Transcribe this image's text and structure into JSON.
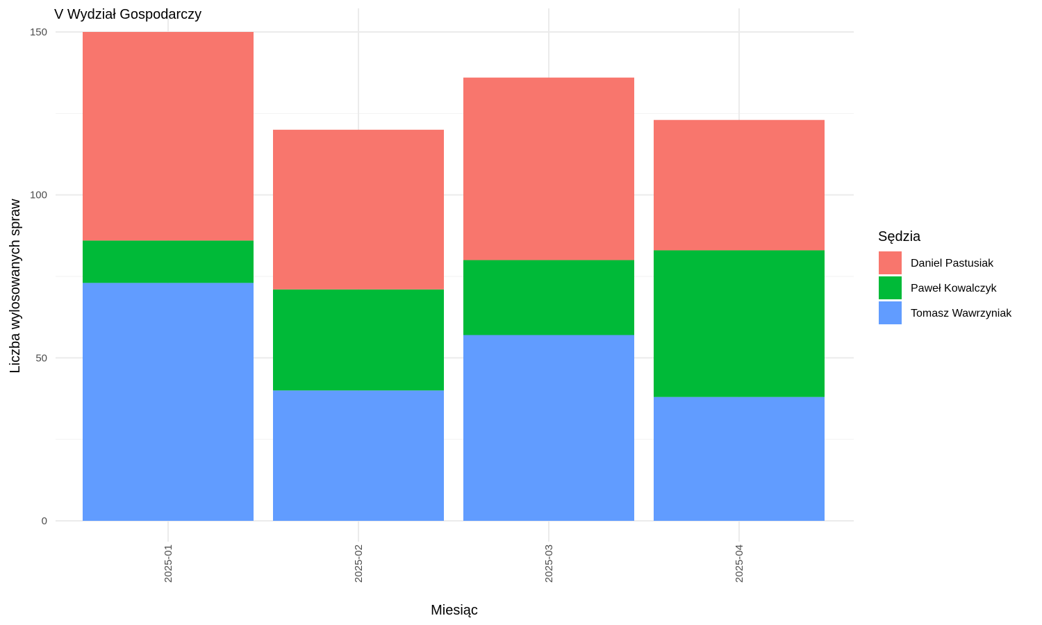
{
  "chart_data": {
    "type": "bar",
    "stacked": true,
    "title": "V Wydział Gospodarczy",
    "xlabel": "Miesiąc",
    "ylabel": "Liczba wylosowanych spraw",
    "categories": [
      "2025-01",
      "2025-02",
      "2025-03",
      "2025-04"
    ],
    "yticks": [
      0,
      50,
      100,
      150
    ],
    "ylim": [
      0,
      150
    ],
    "grid": true,
    "legend": {
      "title": "Sędzia",
      "position": "right"
    },
    "series": [
      {
        "name": "Tomasz Wawrzyniak",
        "color": "#619CFF",
        "values": [
          73,
          40,
          57,
          38
        ]
      },
      {
        "name": "Paweł Kowalczyk",
        "color": "#00BA38",
        "values": [
          13,
          31,
          23,
          45
        ]
      },
      {
        "name": "Daniel Pastusiak",
        "color": "#F8766D",
        "values": [
          64,
          49,
          56,
          40
        ]
      }
    ],
    "legend_order": [
      "Daniel Pastusiak",
      "Paweł Kowalczyk",
      "Tomasz Wawrzyniak"
    ]
  }
}
